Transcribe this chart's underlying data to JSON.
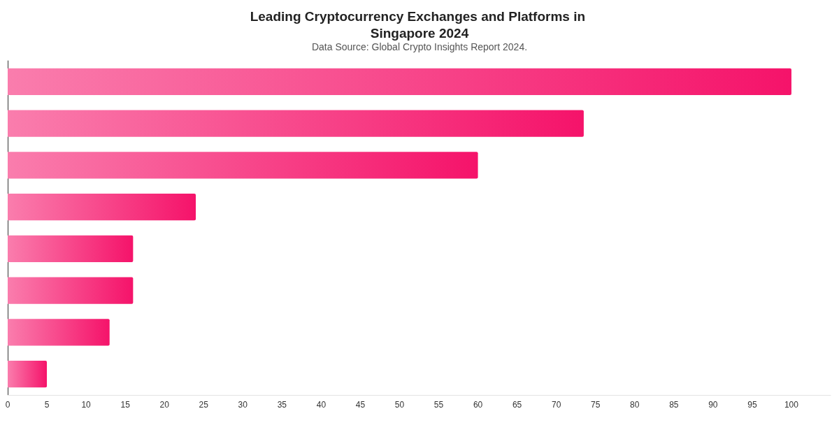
{
  "chart_data": {
    "type": "bar",
    "orientation": "horizontal",
    "title": "Leading Cryptocurrency Exchanges and Platforms in Singapore 2024",
    "annotations": [
      "Data Source: Global Crypto Insights Report 2024."
    ],
    "categories": [
      null,
      null,
      null,
      null,
      null,
      null,
      null,
      null
    ],
    "values": [
      100,
      73.5,
      60,
      24,
      16,
      16,
      13,
      5
    ],
    "color": "#f5136a",
    "xlim": [
      0,
      105
    ],
    "xticks": [
      0,
      5,
      10,
      15,
      20,
      25,
      30,
      35,
      40,
      45,
      50,
      55,
      60,
      65,
      70,
      75,
      80,
      85,
      90,
      95,
      100
    ],
    "tick_labels": "x"
  }
}
